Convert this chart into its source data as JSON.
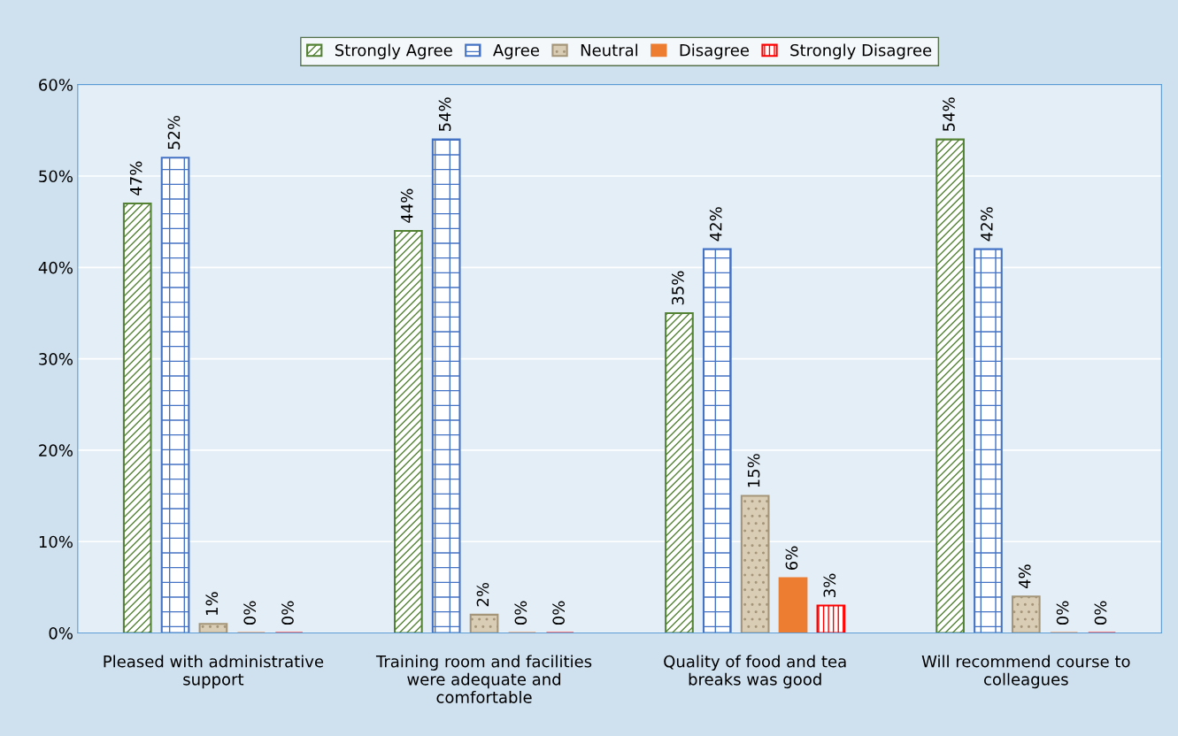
{
  "chart_data": {
    "type": "bar",
    "categories": [
      "Pleased with administrative support",
      "Training room and facilities were adequate and comfortable",
      "Quality of food and tea breaks was good",
      "Will recommend course to colleagues"
    ],
    "series": [
      {
        "name": "Strongly Agree",
        "color": "#548235",
        "values": [
          47,
          44,
          35,
          54
        ],
        "value_labels": [
          "47%",
          "44%",
          "35%",
          "54%"
        ]
      },
      {
        "name": "Agree",
        "color": "#4472c4",
        "values": [
          52,
          54,
          42,
          42
        ],
        "value_labels": [
          "52%",
          "54%",
          "42%",
          "42%"
        ]
      },
      {
        "name": "Neutral",
        "color": "#a5967a",
        "values": [
          1,
          2,
          15,
          4
        ],
        "value_labels": [
          "1%",
          "2%",
          "15%",
          "4%"
        ]
      },
      {
        "name": "Disagree",
        "color": "#ed7d31",
        "values": [
          0,
          0,
          6,
          0
        ],
        "value_labels": [
          "0%",
          "0%",
          "6%",
          "0%"
        ]
      },
      {
        "name": "Strongly Disagree",
        "color": "#ff0000",
        "values": [
          0,
          0,
          3,
          0
        ],
        "value_labels": [
          "0%",
          "0%",
          "3%",
          "0%"
        ]
      }
    ],
    "ylim": [
      0,
      60
    ],
    "yticks": [
      {
        "value": 0,
        "label": "0%"
      },
      {
        "value": 10,
        "label": "10%"
      },
      {
        "value": 20,
        "label": "20%"
      },
      {
        "value": 30,
        "label": "30%"
      },
      {
        "value": 40,
        "label": "40%"
      },
      {
        "value": 50,
        "label": "50%"
      },
      {
        "value": 60,
        "label": "60%"
      }
    ],
    "grid": "y",
    "legend": "top"
  }
}
